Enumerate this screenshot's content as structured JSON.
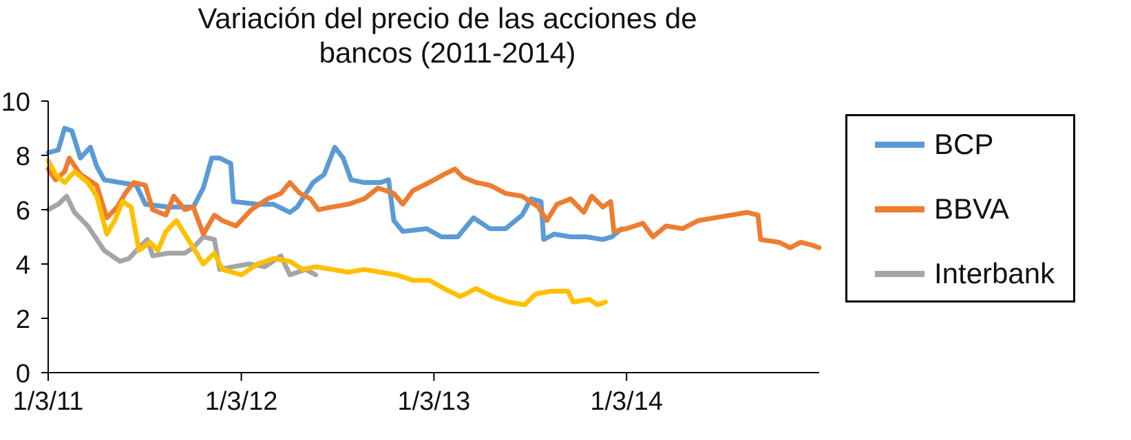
{
  "chart_data": {
    "type": "line",
    "title_lines": [
      "Variación del precio de las acciones de",
      "bancos (2011-2014)"
    ],
    "xlabel": "",
    "ylabel": "",
    "x_ticks": [
      "1/3/11",
      "1/3/12",
      "1/3/13",
      "1/3/14"
    ],
    "x_range": [
      "2011-03-01",
      "2015-03-01"
    ],
    "y_ticks": [
      "0",
      "2",
      "4",
      "6",
      "8",
      "10"
    ],
    "ylim": [
      0,
      10
    ],
    "grid": false,
    "legend_position": "right",
    "series": [
      {
        "name": "BCP",
        "color": "#5b9bd5",
        "points": [
          [
            "2011-03-01",
            8.1
          ],
          [
            "2011-03-20",
            8.2
          ],
          [
            "2011-04-01",
            9.0
          ],
          [
            "2011-04-15",
            8.9
          ],
          [
            "2011-05-01",
            7.9
          ],
          [
            "2011-05-20",
            8.3
          ],
          [
            "2011-06-01",
            7.6
          ],
          [
            "2011-06-15",
            7.1
          ],
          [
            "2011-07-15",
            7.0
          ],
          [
            "2011-08-15",
            6.9
          ],
          [
            "2011-09-01",
            6.2
          ],
          [
            "2011-10-15",
            6.1
          ],
          [
            "2011-12-01",
            6.1
          ],
          [
            "2011-12-20",
            6.8
          ],
          [
            "2012-01-05",
            7.9
          ],
          [
            "2012-01-20",
            7.9
          ],
          [
            "2012-02-10",
            7.7
          ],
          [
            "2012-02-15",
            6.3
          ],
          [
            "2012-04-01",
            6.2
          ],
          [
            "2012-05-01",
            6.2
          ],
          [
            "2012-06-01",
            5.9
          ],
          [
            "2012-06-15",
            6.1
          ],
          [
            "2012-07-15",
            7.0
          ],
          [
            "2012-08-05",
            7.3
          ],
          [
            "2012-08-25",
            8.3
          ],
          [
            "2012-09-10",
            7.9
          ],
          [
            "2012-09-25",
            7.1
          ],
          [
            "2012-10-20",
            7.0
          ],
          [
            "2012-11-20",
            7.0
          ],
          [
            "2012-12-05",
            7.1
          ],
          [
            "2012-12-15",
            5.6
          ],
          [
            "2013-01-01",
            5.2
          ],
          [
            "2013-02-15",
            5.3
          ],
          [
            "2013-03-15",
            5.0
          ],
          [
            "2013-04-15",
            5.0
          ],
          [
            "2013-05-15",
            5.7
          ],
          [
            "2013-06-15",
            5.3
          ],
          [
            "2013-07-15",
            5.3
          ],
          [
            "2013-08-15",
            5.8
          ],
          [
            "2013-09-01",
            6.4
          ],
          [
            "2013-09-20",
            6.3
          ],
          [
            "2013-09-25",
            4.9
          ],
          [
            "2013-10-15",
            5.1
          ],
          [
            "2013-11-15",
            5.0
          ],
          [
            "2013-12-15",
            5.0
          ],
          [
            "2014-01-15",
            4.9
          ],
          [
            "2014-02-01",
            5.0
          ],
          [
            "2014-02-20",
            5.3
          ]
        ]
      },
      {
        "name": "BBVA",
        "color": "#ed7d31",
        "points": [
          [
            "2011-03-01",
            7.5
          ],
          [
            "2011-03-15",
            7.1
          ],
          [
            "2011-04-01",
            7.4
          ],
          [
            "2011-04-10",
            7.9
          ],
          [
            "2011-05-01",
            7.3
          ],
          [
            "2011-06-01",
            6.9
          ],
          [
            "2011-06-20",
            5.7
          ],
          [
            "2011-07-10",
            6.1
          ],
          [
            "2011-07-25",
            6.6
          ],
          [
            "2011-08-10",
            7.0
          ],
          [
            "2011-09-01",
            6.9
          ],
          [
            "2011-09-15",
            6.0
          ],
          [
            "2011-10-10",
            5.8
          ],
          [
            "2011-10-25",
            6.5
          ],
          [
            "2011-11-15",
            6.0
          ],
          [
            "2011-12-01",
            6.1
          ],
          [
            "2011-12-20",
            5.1
          ],
          [
            "2012-01-10",
            5.8
          ],
          [
            "2012-01-25",
            5.6
          ],
          [
            "2012-02-20",
            5.4
          ],
          [
            "2012-03-20",
            6.0
          ],
          [
            "2012-04-20",
            6.4
          ],
          [
            "2012-05-15",
            6.6
          ],
          [
            "2012-06-01",
            7.0
          ],
          [
            "2012-06-20",
            6.6
          ],
          [
            "2012-07-10",
            6.4
          ],
          [
            "2012-07-25",
            6.0
          ],
          [
            "2012-08-20",
            6.1
          ],
          [
            "2012-09-20",
            6.2
          ],
          [
            "2012-10-20",
            6.4
          ],
          [
            "2012-11-15",
            6.8
          ],
          [
            "2012-12-15",
            6.6
          ],
          [
            "2013-01-01",
            6.2
          ],
          [
            "2013-01-20",
            6.7
          ],
          [
            "2013-02-20",
            7.0
          ],
          [
            "2013-03-20",
            7.3
          ],
          [
            "2013-04-10",
            7.5
          ],
          [
            "2013-04-25",
            7.2
          ],
          [
            "2013-05-20",
            7.0
          ],
          [
            "2013-06-15",
            6.9
          ],
          [
            "2013-07-15",
            6.6
          ],
          [
            "2013-08-15",
            6.5
          ],
          [
            "2013-09-15",
            6.1
          ],
          [
            "2013-10-01",
            5.6
          ],
          [
            "2013-10-20",
            6.2
          ],
          [
            "2013-11-15",
            6.4
          ],
          [
            "2013-12-10",
            5.9
          ],
          [
            "2013-12-25",
            6.5
          ],
          [
            "2014-01-15",
            6.1
          ],
          [
            "2014-01-30",
            6.3
          ],
          [
            "2014-02-05",
            5.2
          ],
          [
            "2014-03-01",
            5.3
          ],
          [
            "2014-04-01",
            5.5
          ],
          [
            "2014-04-20",
            5.0
          ],
          [
            "2014-05-15",
            5.4
          ],
          [
            "2014-06-15",
            5.3
          ],
          [
            "2014-07-15",
            5.6
          ],
          [
            "2014-08-15",
            5.7
          ],
          [
            "2014-09-15",
            5.8
          ],
          [
            "2014-10-15",
            5.9
          ],
          [
            "2014-11-05",
            5.8
          ],
          [
            "2014-11-10",
            4.9
          ],
          [
            "2014-12-15",
            4.8
          ],
          [
            "2015-01-05",
            4.6
          ],
          [
            "2015-01-25",
            4.8
          ],
          [
            "2015-02-15",
            4.7
          ],
          [
            "2015-03-01",
            4.6
          ]
        ]
      },
      {
        "name": "Interbank",
        "color": "#a5a5a5",
        "points": [
          [
            "2011-03-01",
            6.0
          ],
          [
            "2011-03-20",
            6.2
          ],
          [
            "2011-04-05",
            6.5
          ],
          [
            "2011-04-20",
            5.9
          ],
          [
            "2011-05-15",
            5.4
          ],
          [
            "2011-06-15",
            4.5
          ],
          [
            "2011-07-15",
            4.1
          ],
          [
            "2011-08-01",
            4.2
          ],
          [
            "2011-08-20",
            4.6
          ],
          [
            "2011-09-05",
            4.9
          ],
          [
            "2011-09-15",
            4.3
          ],
          [
            "2011-10-15",
            4.4
          ],
          [
            "2011-11-15",
            4.4
          ],
          [
            "2011-12-01",
            4.6
          ],
          [
            "2011-12-20",
            5.0
          ],
          [
            "2012-01-10",
            4.9
          ],
          [
            "2012-01-20",
            3.8
          ],
          [
            "2012-02-15",
            3.9
          ],
          [
            "2012-03-15",
            4.0
          ],
          [
            "2012-04-15",
            3.9
          ],
          [
            "2012-05-15",
            4.3
          ],
          [
            "2012-06-01",
            3.6
          ],
          [
            "2012-07-01",
            3.8
          ],
          [
            "2012-07-20",
            3.6
          ]
        ]
      },
      {
        "name": "",
        "color": "#ffc000",
        "points": [
          [
            "2011-03-01",
            7.8
          ],
          [
            "2011-03-15",
            7.3
          ],
          [
            "2011-04-01",
            7.0
          ],
          [
            "2011-04-20",
            7.4
          ],
          [
            "2011-05-15",
            7.0
          ],
          [
            "2011-06-01",
            6.5
          ],
          [
            "2011-06-20",
            5.1
          ],
          [
            "2011-07-05",
            5.6
          ],
          [
            "2011-07-20",
            6.3
          ],
          [
            "2011-08-05",
            6.1
          ],
          [
            "2011-08-20",
            4.5
          ],
          [
            "2011-09-10",
            4.8
          ],
          [
            "2011-09-25",
            4.5
          ],
          [
            "2011-10-10",
            5.2
          ],
          [
            "2011-10-30",
            5.6
          ],
          [
            "2011-11-15",
            5.1
          ],
          [
            "2011-12-01",
            4.6
          ],
          [
            "2011-12-20",
            4.0
          ],
          [
            "2012-01-10",
            4.4
          ],
          [
            "2012-01-25",
            3.8
          ],
          [
            "2012-03-01",
            3.6
          ],
          [
            "2012-04-01",
            4.0
          ],
          [
            "2012-05-01",
            4.2
          ],
          [
            "2012-06-01",
            4.1
          ],
          [
            "2012-06-25",
            3.8
          ],
          [
            "2012-07-20",
            3.9
          ],
          [
            "2012-08-20",
            3.8
          ],
          [
            "2012-09-20",
            3.7
          ],
          [
            "2012-10-20",
            3.8
          ],
          [
            "2012-11-20",
            3.7
          ],
          [
            "2012-12-20",
            3.6
          ],
          [
            "2013-01-20",
            3.4
          ],
          [
            "2013-02-20",
            3.4
          ],
          [
            "2013-03-20",
            3.1
          ],
          [
            "2013-04-20",
            2.8
          ],
          [
            "2013-05-20",
            3.1
          ],
          [
            "2013-06-20",
            2.8
          ],
          [
            "2013-07-20",
            2.6
          ],
          [
            "2013-08-20",
            2.5
          ],
          [
            "2013-09-10",
            2.9
          ],
          [
            "2013-10-10",
            3.0
          ],
          [
            "2013-11-10",
            3.0
          ],
          [
            "2013-11-20",
            2.6
          ],
          [
            "2013-12-20",
            2.7
          ],
          [
            "2014-01-05",
            2.5
          ],
          [
            "2014-01-20",
            2.6
          ]
        ]
      }
    ]
  }
}
